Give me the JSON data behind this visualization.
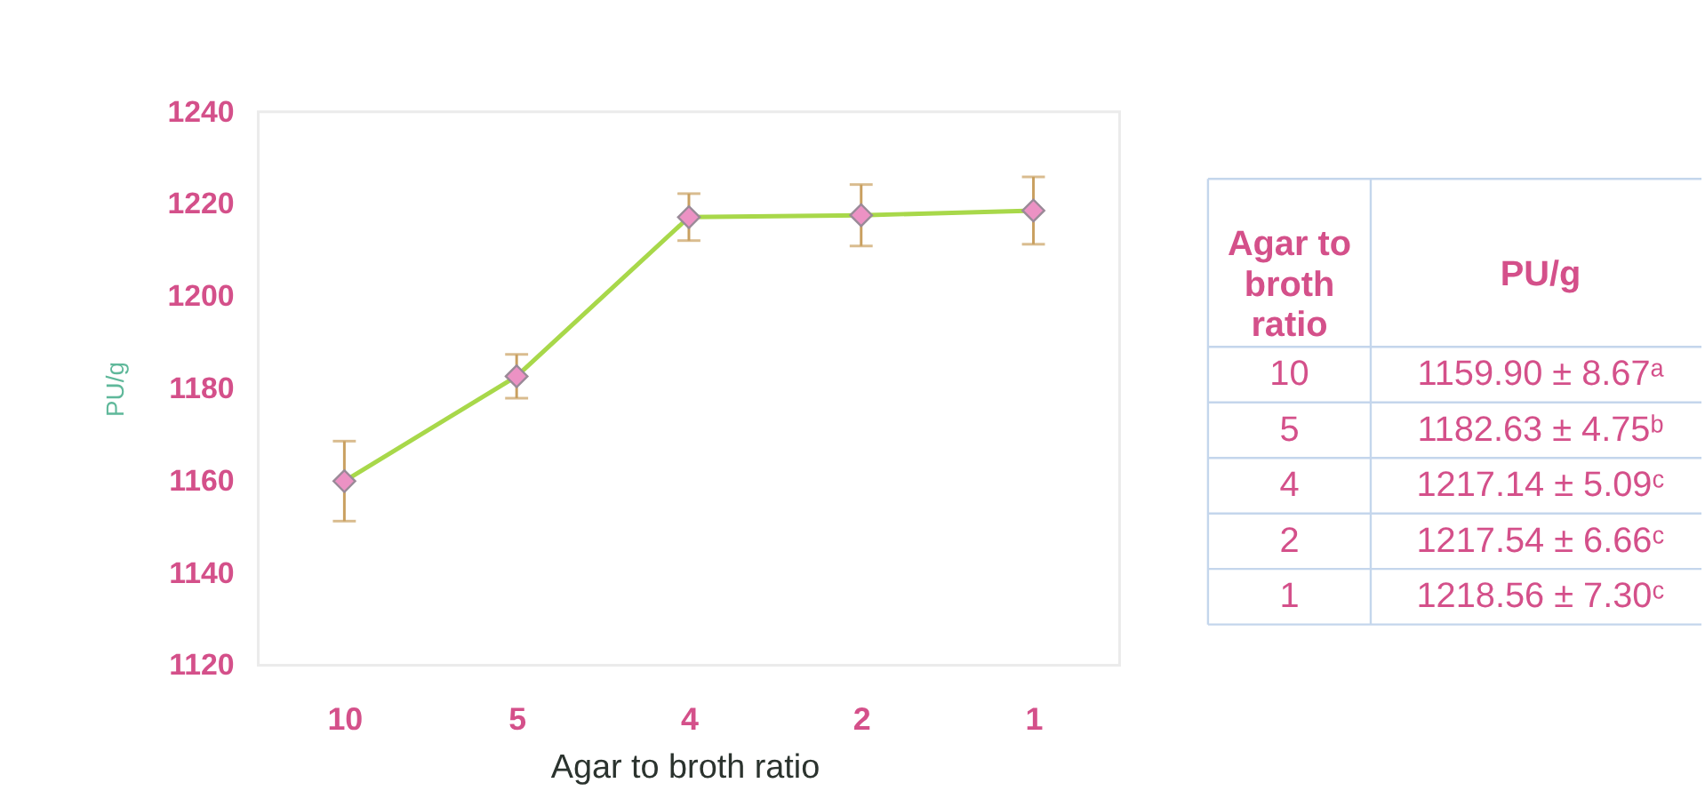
{
  "chart_data": [
    {
      "type": "line",
      "xlabel": "Agar to broth ratio",
      "ylabel": "PU/g",
      "categories": [
        "10",
        "5",
        "4",
        "2",
        "1"
      ],
      "values": [
        1159.9,
        1182.63,
        1217.14,
        1217.54,
        1218.56
      ],
      "color": "#a8d84a",
      "errors": [
        8.67,
        4.75,
        5.09,
        6.66,
        7.3
      ],
      "data_labels": false,
      "ylim": [
        1120,
        1240
      ],
      "yticks": [
        1120,
        1140,
        1160,
        1180,
        1200,
        1220,
        1240
      ],
      "marker": "diamond",
      "line_style": "solid"
    },
    {
      "type": "other",
      "annotations": [
        "Agar to broth ratio",
        "PU/g",
        "10",
        "1159.90 ± 8.67ᵃ",
        "5",
        "1182.63 ± 4.75ᵇ",
        "4",
        "1217.14 ± 5.09ᶜ",
        "2",
        "1217.54 ± 6.66ᶜ",
        "1",
        "1218.56 ± 7.30ᶜ"
      ]
    }
  ]
}
